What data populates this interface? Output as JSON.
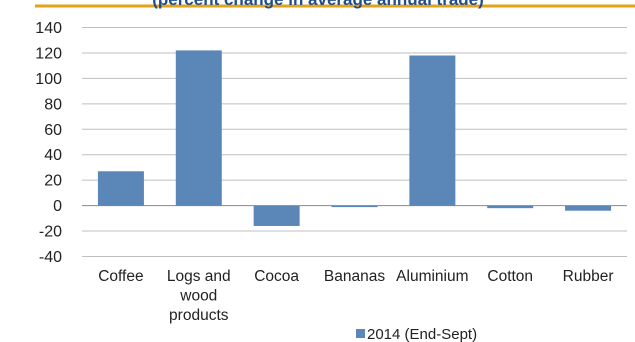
{
  "chart_data": {
    "type": "bar",
    "title": "(percent change in average annual trade)",
    "categories": [
      "Coffee",
      "Logs and wood products",
      "Cocoa",
      "Bananas",
      "Aluminium",
      "Cotton",
      "Rubber"
    ],
    "category_lines": [
      [
        "Coffee"
      ],
      [
        "Logs and",
        "wood",
        "products"
      ],
      [
        "Cocoa"
      ],
      [
        "Bananas"
      ],
      [
        "Aluminium"
      ],
      [
        "Cotton"
      ],
      [
        "Rubber"
      ]
    ],
    "series": [
      {
        "name": "2014 (End-Sept)",
        "values": [
          27,
          122,
          -16,
          -1,
          118,
          -2,
          -4
        ]
      }
    ],
    "ylim": [
      -40,
      140
    ],
    "yticks": [
      -40,
      -20,
      0,
      20,
      40,
      60,
      80,
      100,
      120,
      140
    ],
    "grid": true,
    "legend_position": "bottom-center",
    "colors": {
      "bar": "#5b87b8",
      "grid": "#bfbfbf",
      "title": "#1f4e8c",
      "axis": "#888888"
    }
  }
}
